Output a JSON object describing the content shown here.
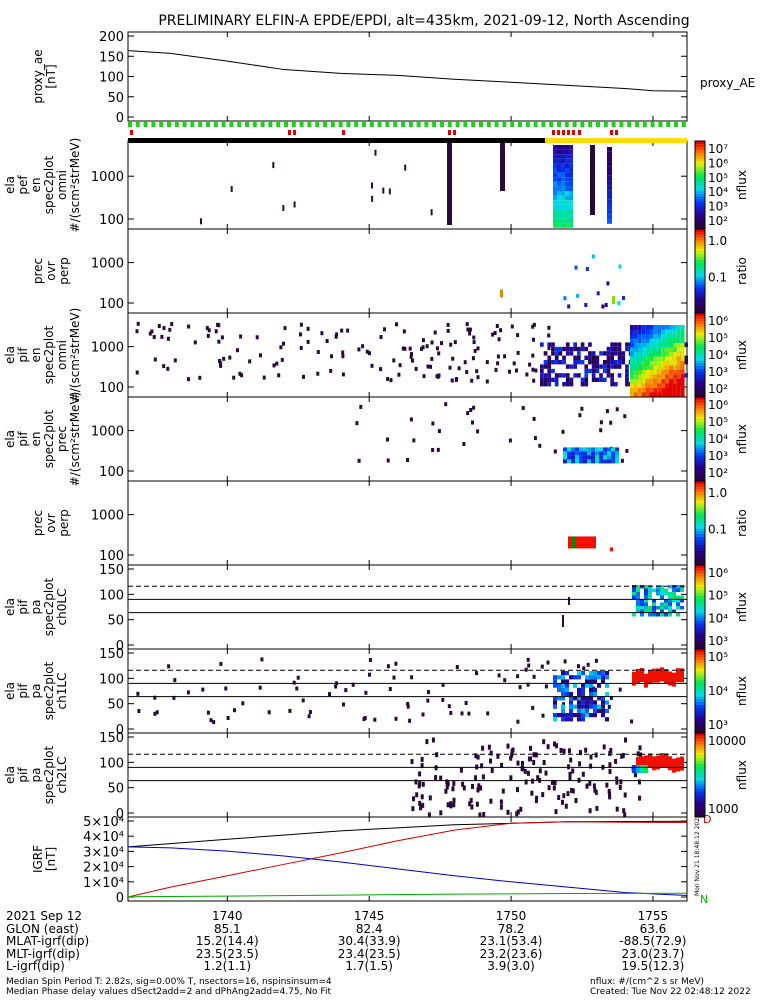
{
  "title": "PRELIMINARY ELFIN-A EPDE/EPDI, alt=435km, 2021-09-12, North Ascending",
  "colors": {
    "green_bar": "#22cc22",
    "red_mark": "#dd0000",
    "black_bar": "#000000",
    "yellow_bar": "#ffdd00",
    "igrf_black": "#000000",
    "igrf_red": "#cc0000",
    "igrf_blue": "#0000cc",
    "igrf_green": "#00aa00",
    "spec_dark": "#2a0a3a"
  },
  "chart_data": {
    "type": "multi-panel-spectrogram",
    "x_range": [
      1736.5,
      1756.2
    ],
    "x_ticks": [
      "1740",
      "1745",
      "1750",
      "1755"
    ],
    "panels": [
      {
        "id": "proxy_ae",
        "label_lines": [
          "proxy_ae",
          "[nT]"
        ],
        "type": "line",
        "yticks": [
          "0",
          "50",
          "100",
          "150",
          "200"
        ],
        "ylim": [
          0,
          210
        ],
        "series_name": "proxy_AE",
        "x": [
          1736.5,
          1738,
          1740,
          1742,
          1744,
          1746,
          1748,
          1750,
          1752,
          1754,
          1755,
          1756.2
        ],
        "y": [
          172,
          165,
          145,
          123,
          113,
          108,
          98,
          90,
          82,
          74,
          68,
          67
        ]
      },
      {
        "id": "ela_pef_omni",
        "label_lines": [
          "ela",
          "pef",
          "en",
          "spec2plot",
          "omni",
          "#/(scm²strMeV)"
        ],
        "type": "heatmap",
        "yticks": [
          "100",
          "1000"
        ],
        "colorbar": {
          "label": "nflux",
          "ticks": [
            "10⁷",
            "10⁶",
            "10⁵",
            "10⁴",
            "10³",
            "10²"
          ]
        }
      },
      {
        "id": "prec_ovr_perp_e",
        "label_lines": [
          "prec",
          "ovr",
          "perp"
        ],
        "type": "heatmap",
        "yticks": [
          "100",
          "1000"
        ],
        "colorbar": {
          "label": "ratio",
          "ticks": [
            "1.0",
            "0.1"
          ]
        }
      },
      {
        "id": "ela_pif_omni",
        "label_lines": [
          "ela",
          "pif",
          "en",
          "spec2plot",
          "omni",
          "#/(scm²strMeV)"
        ],
        "type": "heatmap",
        "yticks": [
          "100",
          "1000"
        ],
        "colorbar": {
          "label": "nflux",
          "ticks": [
            "10⁶",
            "10⁵",
            "10⁴",
            "10³",
            "10²"
          ]
        }
      },
      {
        "id": "ela_pif_prec",
        "label_lines": [
          "ela",
          "pif",
          "en",
          "spec2plot",
          "prec",
          "#/(scm²strMeV)"
        ],
        "type": "heatmap",
        "yticks": [
          "100",
          "1000"
        ],
        "colorbar": {
          "label": "nflux",
          "ticks": [
            "10⁶",
            "10⁵",
            "10⁴",
            "10³",
            "10²"
          ]
        }
      },
      {
        "id": "prec_ovr_perp_i",
        "label_lines": [
          "prec",
          "ovr",
          "perp"
        ],
        "type": "heatmap",
        "yticks": [
          "100",
          "1000"
        ],
        "colorbar": {
          "label": "ratio",
          "ticks": [
            "1.0",
            "0.1"
          ]
        }
      },
      {
        "id": "ela_pif_pa_ch0",
        "label_lines": [
          "ela",
          "pif",
          "pa",
          "spec2plot",
          "ch0LC"
        ],
        "type": "heatmap",
        "yticks": [
          "0",
          "50",
          "100",
          "150"
        ],
        "colorbar": {
          "label": "nflux",
          "ticks": [
            "10⁶",
            "10⁵",
            "10⁴",
            "10³"
          ]
        }
      },
      {
        "id": "ela_pif_pa_ch1",
        "label_lines": [
          "ela",
          "pif",
          "pa",
          "spec2plot",
          "ch1LC"
        ],
        "type": "heatmap",
        "yticks": [
          "0",
          "50",
          "100",
          "150"
        ],
        "colorbar": {
          "label": "nflux",
          "ticks": [
            "10⁵",
            "10⁴",
            "10³"
          ]
        }
      },
      {
        "id": "ela_pif_pa_ch2",
        "label_lines": [
          "ela",
          "pif",
          "pa",
          "spec2plot",
          "ch2LC"
        ],
        "type": "heatmap",
        "yticks": [
          "0",
          "50",
          "100",
          "150"
        ],
        "colorbar": {
          "label": "nflux",
          "ticks": [
            "10000",
            "1000"
          ]
        }
      },
      {
        "id": "igrf",
        "label_lines": [
          "IGRF",
          "[nT]"
        ],
        "type": "line",
        "yticks": [
          "0",
          "1×10⁴",
          "2×10⁴",
          "3×10⁴",
          "4×10⁴",
          "5×10⁴"
        ],
        "ylim": [
          0,
          50000
        ],
        "series": [
          {
            "color": "black",
            "x": [
              1736.5,
              1740,
              1744,
              1748,
              1752,
              1756.2
            ],
            "y": [
              33000,
              38000,
              43500,
              47500,
              49500,
              49800
            ]
          },
          {
            "color": "red",
            "x": [
              1736.5,
              1738,
              1740,
              1742,
              1744,
              1746,
              1748,
              1750,
              1752,
              1754,
              1756.2
            ],
            "y": [
              0,
              6500,
              14000,
              21500,
              29000,
              37000,
              44000,
              48500,
              49500,
              49200,
              49000
            ]
          },
          {
            "color": "blue",
            "x": [
              1736.5,
              1738,
              1740,
              1742,
              1744,
              1746,
              1748,
              1750,
              1752,
              1754,
              1756.2
            ],
            "y": [
              33000,
              32300,
              30200,
              27000,
              23000,
              18500,
              14000,
              10000,
              6500,
              3000,
              1000
            ]
          },
          {
            "color": "green",
            "x": [
              1736.5,
              1740,
              1744,
              1748,
              1752,
              1756.2
            ],
            "y": [
              200,
              600,
              1200,
              1900,
              2300,
              2500
            ]
          }
        ],
        "end_labels": [
          "D",
          "N"
        ]
      }
    ]
  },
  "ephemeris": {
    "rows": [
      {
        "label": "2021 Sep 12",
        "values": [
          "1740",
          "1745",
          "1750",
          "1755"
        ]
      },
      {
        "label": "GLON (east)",
        "values": [
          "85.1",
          "82.4",
          "78.2",
          "63.6"
        ]
      },
      {
        "label": "MLAT-igrf(dip)",
        "values": [
          "15.2(14.4)",
          "30.4(33.9)",
          "23.1(53.4)",
          "-88.5(72.9)"
        ]
      },
      {
        "label": "MLT-igrf(dip)",
        "values": [
          "23.5(23.5)",
          "23.4(23.5)",
          "23.2(23.6)",
          "23.0(23.7)"
        ]
      },
      {
        "label": "L-igrf(dip)",
        "values": [
          "1.2(1.1)",
          "1.7(1.5)",
          "3.9(3.0)",
          "19.5(12.3)"
        ]
      }
    ]
  },
  "footer": {
    "left1": "Median Spin Period T: 2.82s, sig=0.00% T, nsectors=16, nspinsinsum=4",
    "left2": "Median Phase delay values dSect2add=2 and dPhAng2add=4.75, No Fit",
    "right1": "nflux: #/(cm^2 s sr MeV)",
    "right2": "Created: Tue Nov 22 02:48:12 2022",
    "side_stamp": "Mon Nov 21 18:48:12 2022"
  }
}
